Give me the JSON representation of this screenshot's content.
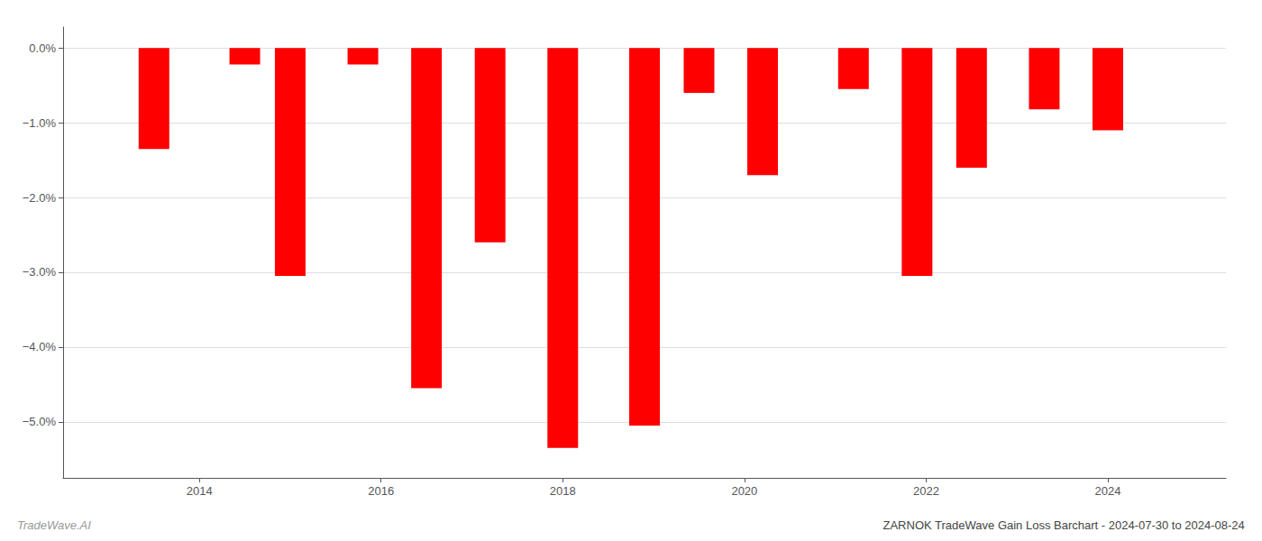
{
  "chart_data": {
    "type": "bar",
    "title": "ZARNOK TradeWave Gain Loss Barchart - 2024-07-30 to 2024-08-24",
    "annotations": [
      "TradeWave.AI"
    ],
    "x": [
      2013.5,
      2014.5,
      2015.0,
      2015.8,
      2016.5,
      2017.2,
      2018.0,
      2018.9,
      2019.5,
      2020.2,
      2021.2,
      2021.9,
      2022.5,
      2023.3,
      2024.0
    ],
    "values": [
      -1.35,
      -0.22,
      -3.05,
      -0.22,
      -4.55,
      -2.6,
      -5.35,
      -5.05,
      -0.6,
      -1.7,
      -0.55,
      -3.05,
      -1.6,
      -0.82,
      -1.1
    ],
    "color": "#ff0000",
    "xlim": [
      2012.5,
      2025.3
    ],
    "xticks": [
      2014,
      2016,
      2018,
      2020,
      2022,
      2024
    ],
    "ylim": [
      -5.75,
      0.28
    ],
    "yticks": [
      {
        "value": 0.0,
        "label": "0.0%"
      },
      {
        "value": -1.0,
        "label": "−1.0%"
      },
      {
        "value": -2.0,
        "label": "−2.0%"
      },
      {
        "value": -3.0,
        "label": "−3.0%"
      },
      {
        "value": -4.0,
        "label": "−4.0%"
      },
      {
        "value": -5.0,
        "label": "−5.0%"
      }
    ],
    "grid": true
  }
}
